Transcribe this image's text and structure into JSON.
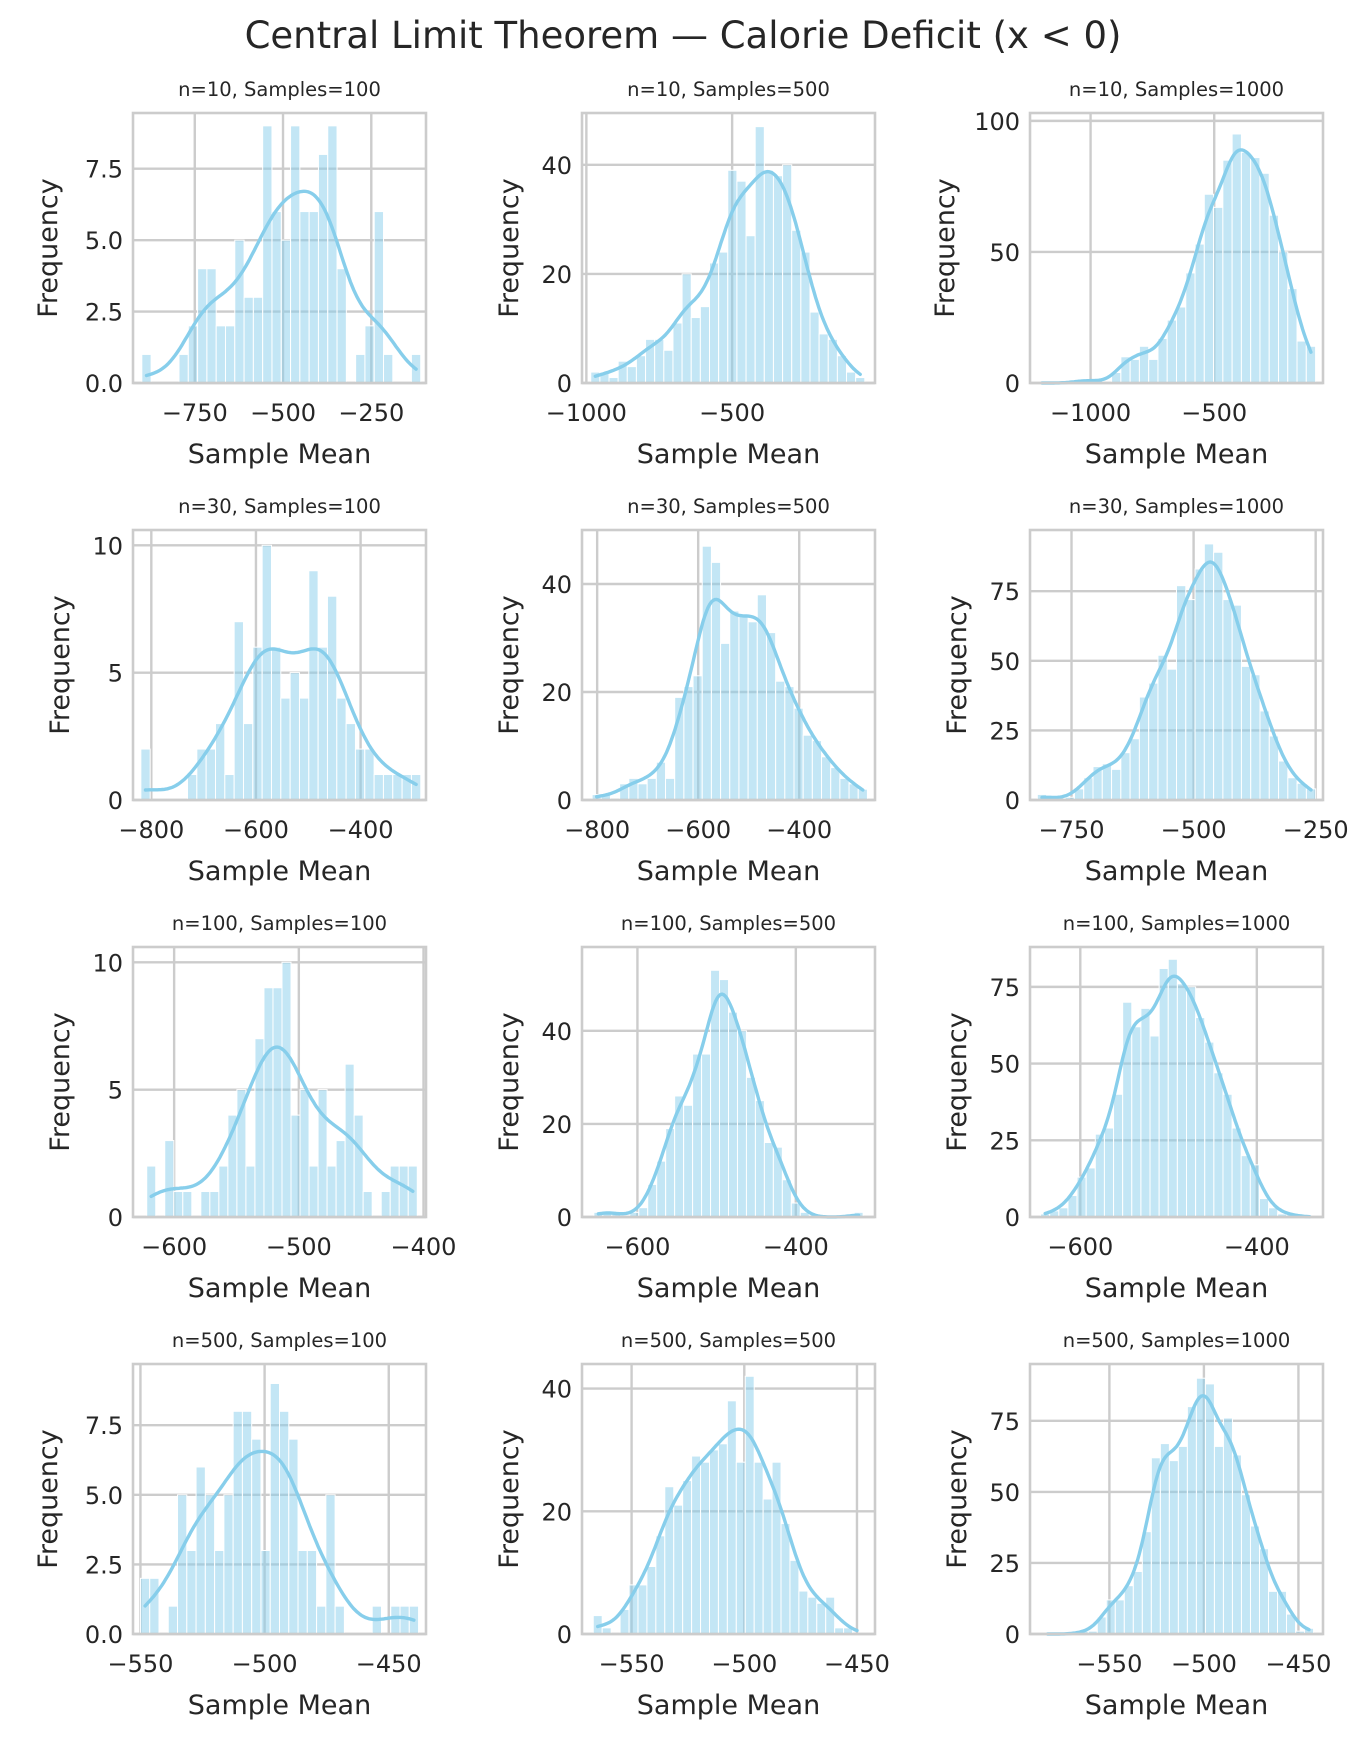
{
  "figure": {
    "suptitle": "Central Limit Theorem — Calorie Deficit (x < 0)",
    "bar_color": "#87ceeb",
    "kde_color": "#87ceeb",
    "grid_color": "#cccccc",
    "spine_color": "#cccccc",
    "text_color": "#262626"
  },
  "chart_data": [
    {
      "type": "bar",
      "title": "n=10, Samples=100",
      "xlabel": "Sample Mean",
      "ylabel": "Frequency",
      "xlim": [
        -925,
        -95
      ],
      "ylim": [
        0,
        9.45
      ],
      "xticks": [
        -750,
        -500,
        -250
      ],
      "yticks": [
        0,
        2.5,
        5.0,
        7.5
      ],
      "ytick_labels": [
        "0.0",
        "2.5",
        "5.0",
        "7.5"
      ],
      "grid": true,
      "bin_range": [
        -900,
        -110
      ],
      "values": [
        1,
        0,
        0,
        0,
        1,
        2,
        4,
        4,
        2,
        2,
        5,
        3,
        3,
        9,
        6,
        5,
        9,
        6,
        6,
        8,
        9,
        4,
        0,
        1,
        2,
        6,
        1,
        0,
        0,
        1
      ]
    },
    {
      "type": "bar",
      "title": "n=10, Samples=500",
      "xlabel": "Sample Mean",
      "ylabel": "Frequency",
      "xlim": [
        -1015,
        -10
      ],
      "ylim": [
        0,
        49.5
      ],
      "xticks": [
        -1000,
        -500
      ],
      "yticks": [
        0,
        20,
        40
      ],
      "ytick_labels": [
        "0",
        "20",
        "40"
      ],
      "grid": true,
      "bin_range": [
        -985,
        -45
      ],
      "values": [
        2,
        2,
        1,
        4,
        3,
        5,
        8,
        8,
        6,
        11,
        20,
        12,
        14,
        22,
        24,
        39,
        37,
        27,
        47,
        39,
        38,
        40,
        28,
        24,
        13,
        9,
        8,
        5,
        2,
        1
      ]
    },
    {
      "type": "bar",
      "title": "n=10, Samples=1000",
      "xlabel": "Sample Mean",
      "ylabel": "Frequency",
      "xlim": [
        -1245,
        -60
      ],
      "ylim": [
        0,
        103
      ],
      "xticks": [
        -1000,
        -500
      ],
      "yticks": [
        0,
        50,
        100
      ],
      "ytick_labels": [
        "0",
        "50",
        "100"
      ],
      "grid": true,
      "bin_range": [
        -1215,
        -90
      ],
      "values": [
        0,
        0,
        0,
        0,
        1,
        1,
        1,
        0,
        4,
        10,
        9,
        14,
        9,
        17,
        24,
        29,
        42,
        53,
        72,
        67,
        85,
        95,
        88,
        86,
        80,
        64,
        50,
        36,
        16,
        14
      ]
    },
    {
      "type": "bar",
      "title": "n=30, Samples=100",
      "xlabel": "Sample Mean",
      "ylabel": "Frequency",
      "xlim": [
        -835,
        -275
      ],
      "ylim": [
        0,
        10.6
      ],
      "xticks": [
        -800,
        -600,
        -400
      ],
      "yticks": [
        0,
        5,
        10
      ],
      "ytick_labels": [
        "0",
        "5",
        "10"
      ],
      "grid": true,
      "bin_range": [
        -820,
        -285
      ],
      "values": [
        2,
        0,
        0,
        0,
        0,
        1,
        2,
        2,
        3,
        1,
        7,
        3,
        6,
        10,
        6,
        4,
        5,
        4,
        9,
        6,
        8,
        4,
        3,
        2,
        2,
        1,
        1,
        1,
        1,
        1
      ]
    },
    {
      "type": "bar",
      "title": "n=30, Samples=500",
      "xlabel": "Sample Mean",
      "ylabel": "Frequency",
      "xlim": [
        -830,
        -250
      ],
      "ylim": [
        0,
        50
      ],
      "xticks": [
        -800,
        -600,
        -400
      ],
      "yticks": [
        0,
        20,
        40
      ],
      "ytick_labels": [
        "0",
        "20",
        "40"
      ],
      "grid": true,
      "bin_range": [
        -810,
        -265
      ],
      "values": [
        1,
        1,
        0,
        3,
        4,
        3,
        4,
        7,
        4,
        19,
        21,
        23,
        47,
        44,
        29,
        35,
        34,
        33,
        38,
        31,
        22,
        21,
        17,
        12,
        11,
        8,
        6,
        4,
        3,
        2
      ]
    },
    {
      "type": "bar",
      "title": "n=30, Samples=1000",
      "xlabel": "Sample Mean",
      "ylabel": "Frequency",
      "xlim": [
        -835,
        -235
      ],
      "ylim": [
        0,
        97
      ],
      "xticks": [
        -750,
        -500,
        -250
      ],
      "yticks": [
        0,
        25,
        50,
        75
      ],
      "ytick_labels": [
        "0",
        "25",
        "50",
        "75"
      ],
      "grid": true,
      "bin_range": [
        -820,
        -250
      ],
      "values": [
        2,
        1,
        0,
        1,
        4,
        8,
        12,
        13,
        11,
        17,
        22,
        37,
        42,
        52,
        47,
        77,
        72,
        83,
        92,
        89,
        72,
        70,
        48,
        45,
        32,
        23,
        14,
        8,
        6,
        4
      ]
    },
    {
      "type": "bar",
      "title": "n=100, Samples=100",
      "xlabel": "Sample Mean",
      "ylabel": "Frequency",
      "xlim": [
        -633,
        -398
      ],
      "ylim": [
        0,
        10.6
      ],
      "xticks": [
        -600,
        -500,
        -400
      ],
      "yticks": [
        0,
        5,
        10
      ],
      "ytick_labels": [
        "0",
        "5",
        "10"
      ],
      "grid": true,
      "bin_range": [
        -622,
        -405
      ],
      "values": [
        2,
        0,
        3,
        1,
        1,
        0,
        1,
        1,
        2,
        4,
        5,
        2,
        7,
        9,
        9,
        10,
        4,
        5,
        2,
        5,
        2,
        3,
        6,
        4,
        1,
        0,
        1,
        2,
        2,
        2
      ]
    },
    {
      "type": "bar",
      "title": "n=100, Samples=500",
      "xlabel": "Sample Mean",
      "ylabel": "Frequency",
      "xlim": [
        -670,
        -300
      ],
      "ylim": [
        0,
        58
      ],
      "xticks": [
        -600,
        -400
      ],
      "yticks": [
        0,
        20,
        40
      ],
      "ytick_labels": [
        "0",
        "20",
        "40"
      ],
      "grid": true,
      "bin_range": [
        -655,
        -315
      ],
      "values": [
        1,
        1,
        1,
        0,
        1,
        2,
        7,
        12,
        19,
        26,
        24,
        35,
        35,
        53,
        51,
        44,
        40,
        30,
        25,
        16,
        15,
        8,
        3,
        1,
        0,
        0,
        0,
        0,
        0,
        1
      ]
    },
    {
      "type": "bar",
      "title": "n=100, Samples=1000",
      "xlabel": "Sample Mean",
      "ylabel": "Frequency",
      "xlim": [
        -657,
        -325
      ],
      "ylim": [
        0,
        88
      ],
      "xticks": [
        -600,
        -400
      ],
      "yticks": [
        0,
        25,
        50,
        75
      ],
      "ytick_labels": [
        "0",
        "25",
        "50",
        "75"
      ],
      "grid": true,
      "bin_range": [
        -645,
        -335
      ],
      "values": [
        1,
        2,
        3,
        7,
        13,
        16,
        27,
        29,
        40,
        70,
        62,
        68,
        59,
        81,
        84,
        76,
        75,
        65,
        57,
        47,
        40,
        29,
        20,
        17,
        6,
        3,
        1,
        1,
        0,
        0
      ]
    },
    {
      "type": "bar",
      "title": "n=500, Samples=100",
      "xlabel": "Sample Mean",
      "ylabel": "Frequency",
      "xlim": [
        -553,
        -435
      ],
      "ylim": [
        0,
        9.7
      ],
      "xticks": [
        -550,
        -500,
        -450
      ],
      "yticks": [
        0,
        2.5,
        5.0,
        7.5
      ],
      "ytick_labels": [
        "0.0",
        "2.5",
        "5.0",
        "7.5"
      ],
      "grid": true,
      "bin_range": [
        -550,
        -438
      ],
      "values": [
        2,
        2,
        0,
        1,
        5,
        3,
        6,
        5,
        3,
        5,
        8,
        8,
        7,
        3,
        9,
        8,
        7,
        3,
        3,
        1,
        5,
        1,
        0,
        0,
        0,
        1,
        0,
        1,
        1,
        1
      ]
    },
    {
      "type": "bar",
      "title": "n=500, Samples=500",
      "xlabel": "Sample Mean",
      "ylabel": "Frequency",
      "xlim": [
        -572,
        -442
      ],
      "ylim": [
        0,
        44
      ],
      "xticks": [
        -550,
        -500,
        -450
      ],
      "yticks": [
        0,
        20,
        40
      ],
      "ytick_labels": [
        "0",
        "20",
        "40"
      ],
      "grid": true,
      "bin_range": [
        -567,
        -448
      ],
      "values": [
        3,
        1,
        0,
        4,
        8,
        8,
        11,
        16,
        24,
        21,
        25,
        29,
        28,
        30,
        31,
        38,
        28,
        42,
        28,
        22,
        28,
        18,
        12,
        7,
        6,
        5,
        6,
        1,
        1,
        0
      ]
    },
    {
      "type": "bar",
      "title": "n=500, Samples=1000",
      "xlabel": "Sample Mean",
      "ylabel": "Frequency",
      "xlim": [
        -592,
        -437
      ],
      "ylim": [
        0,
        95
      ],
      "xticks": [
        -550,
        -500,
        -450
      ],
      "yticks": [
        0,
        25,
        50,
        75
      ],
      "ytick_labels": [
        "0",
        "25",
        "50",
        "75"
      ],
      "grid": true,
      "bin_range": [
        -585,
        -442
      ],
      "values": [
        0,
        0,
        0,
        0,
        1,
        1,
        6,
        12,
        12,
        17,
        22,
        36,
        62,
        67,
        61,
        66,
        80,
        90,
        88,
        66,
        76,
        63,
        49,
        38,
        30,
        15,
        15,
        7,
        1,
        2
      ]
    }
  ]
}
